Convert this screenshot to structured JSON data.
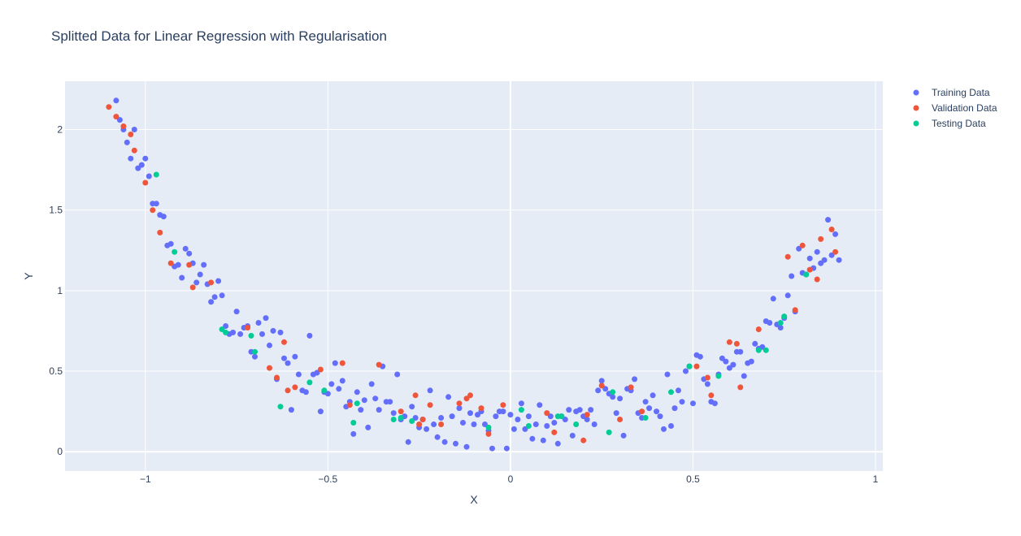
{
  "chart_data": {
    "type": "scatter",
    "title": "Splitted Data for Linear Regression with Regularisation",
    "xlabel": "X",
    "ylabel": "Y",
    "xlim": [
      -1.22,
      1.02
    ],
    "ylim": [
      -0.12,
      2.3
    ],
    "x_ticks": [
      -1,
      -0.5,
      0,
      0.5,
      1
    ],
    "x_tick_labels": [
      "−1",
      "−0.5",
      "0",
      "0.5",
      "1"
    ],
    "y_ticks": [
      0,
      0.5,
      1,
      1.5,
      2
    ],
    "y_tick_labels": [
      "0",
      "0.5",
      "1",
      "1.5",
      "2"
    ],
    "grid": true,
    "plot_background": "#e5ecf6",
    "legend_position": "top-right",
    "series": [
      {
        "name": "Training Data",
        "color": "#636efa",
        "points": [
          [
            -1.08,
            2.18
          ],
          [
            -1.07,
            2.06
          ],
          [
            -1.06,
            2.0
          ],
          [
            -1.05,
            1.92
          ],
          [
            -1.04,
            1.82
          ],
          [
            -1.03,
            2.0
          ],
          [
            -1.02,
            1.76
          ],
          [
            -1.01,
            1.78
          ],
          [
            -1.0,
            1.82
          ],
          [
            -0.99,
            1.71
          ],
          [
            -0.98,
            1.54
          ],
          [
            -0.97,
            1.54
          ],
          [
            -0.96,
            1.47
          ],
          [
            -0.95,
            1.46
          ],
          [
            -0.94,
            1.28
          ],
          [
            -0.93,
            1.29
          ],
          [
            -0.92,
            1.15
          ],
          [
            -0.91,
            1.16
          ],
          [
            -0.9,
            1.08
          ],
          [
            -0.89,
            1.26
          ],
          [
            -0.88,
            1.23
          ],
          [
            -0.87,
            1.17
          ],
          [
            -0.86,
            1.05
          ],
          [
            -0.85,
            1.1
          ],
          [
            -0.84,
            1.16
          ],
          [
            -0.83,
            1.04
          ],
          [
            -0.82,
            0.93
          ],
          [
            -0.81,
            0.96
          ],
          [
            -0.8,
            1.06
          ],
          [
            -0.79,
            0.97
          ],
          [
            -0.78,
            0.78
          ],
          [
            -0.77,
            0.73
          ],
          [
            -0.76,
            0.74
          ],
          [
            -0.75,
            0.87
          ],
          [
            -0.74,
            0.73
          ],
          [
            -0.73,
            0.77
          ],
          [
            -0.72,
            0.78
          ],
          [
            -0.71,
            0.62
          ],
          [
            -0.7,
            0.59
          ],
          [
            -0.69,
            0.8
          ],
          [
            -0.68,
            0.73
          ],
          [
            -0.67,
            0.83
          ],
          [
            -0.66,
            0.66
          ],
          [
            -0.65,
            0.75
          ],
          [
            -0.64,
            0.45
          ],
          [
            -0.63,
            0.74
          ],
          [
            -0.62,
            0.58
          ],
          [
            -0.61,
            0.55
          ],
          [
            -0.6,
            0.26
          ],
          [
            -0.59,
            0.59
          ],
          [
            -0.58,
            0.48
          ],
          [
            -0.57,
            0.38
          ],
          [
            -0.56,
            0.37
          ],
          [
            -0.55,
            0.72
          ],
          [
            -0.54,
            0.48
          ],
          [
            -0.53,
            0.49
          ],
          [
            -0.52,
            0.25
          ],
          [
            -0.51,
            0.37
          ],
          [
            -0.5,
            0.36
          ],
          [
            -0.49,
            0.42
          ],
          [
            -0.48,
            0.55
          ],
          [
            -0.47,
            0.39
          ],
          [
            -0.46,
            0.44
          ],
          [
            -0.45,
            0.28
          ],
          [
            -0.44,
            0.31
          ],
          [
            -0.43,
            0.11
          ],
          [
            -0.42,
            0.37
          ],
          [
            -0.41,
            0.26
          ],
          [
            -0.4,
            0.32
          ],
          [
            -0.39,
            0.15
          ],
          [
            -0.38,
            0.42
          ],
          [
            -0.37,
            0.33
          ],
          [
            -0.36,
            0.26
          ],
          [
            -0.35,
            0.53
          ],
          [
            -0.34,
            0.31
          ],
          [
            -0.33,
            0.31
          ],
          [
            -0.32,
            0.24
          ],
          [
            -0.31,
            0.48
          ],
          [
            -0.3,
            0.2
          ],
          [
            -0.29,
            0.22
          ],
          [
            -0.28,
            0.06
          ],
          [
            -0.27,
            0.28
          ],
          [
            -0.26,
            0.21
          ],
          [
            -0.25,
            0.15
          ],
          [
            -0.24,
            0.2
          ],
          [
            -0.23,
            0.14
          ],
          [
            -0.22,
            0.38
          ],
          [
            -0.21,
            0.17
          ],
          [
            -0.2,
            0.09
          ],
          [
            -0.19,
            0.21
          ],
          [
            -0.18,
            0.06
          ],
          [
            -0.17,
            0.34
          ],
          [
            -0.16,
            0.22
          ],
          [
            -0.15,
            0.05
          ],
          [
            -0.14,
            0.27
          ],
          [
            -0.13,
            0.18
          ],
          [
            -0.12,
            0.03
          ],
          [
            -0.11,
            0.24
          ],
          [
            -0.1,
            0.17
          ],
          [
            -0.09,
            0.23
          ],
          [
            -0.08,
            0.25
          ],
          [
            -0.07,
            0.17
          ],
          [
            -0.06,
            0.13
          ],
          [
            -0.05,
            0.02
          ],
          [
            -0.04,
            0.22
          ],
          [
            -0.03,
            0.25
          ],
          [
            -0.02,
            0.25
          ],
          [
            -0.01,
            0.02
          ],
          [
            0.0,
            0.23
          ],
          [
            0.01,
            0.14
          ],
          [
            0.02,
            0.2
          ],
          [
            0.03,
            0.3
          ],
          [
            0.04,
            0.14
          ],
          [
            0.05,
            0.22
          ],
          [
            0.06,
            0.08
          ],
          [
            0.07,
            0.17
          ],
          [
            0.08,
            0.29
          ],
          [
            0.09,
            0.07
          ],
          [
            0.1,
            0.16
          ],
          [
            0.11,
            0.22
          ],
          [
            0.12,
            0.18
          ],
          [
            0.13,
            0.05
          ],
          [
            0.14,
            0.22
          ],
          [
            0.15,
            0.2
          ],
          [
            0.16,
            0.26
          ],
          [
            0.17,
            0.1
          ],
          [
            0.18,
            0.25
          ],
          [
            0.19,
            0.26
          ],
          [
            0.2,
            0.22
          ],
          [
            0.21,
            0.2
          ],
          [
            0.22,
            0.26
          ],
          [
            0.23,
            0.17
          ],
          [
            0.24,
            0.38
          ],
          [
            0.25,
            0.44
          ],
          [
            0.26,
            0.39
          ],
          [
            0.27,
            0.36
          ],
          [
            0.28,
            0.34
          ],
          [
            0.29,
            0.24
          ],
          [
            0.3,
            0.33
          ],
          [
            0.31,
            0.1
          ],
          [
            0.32,
            0.39
          ],
          [
            0.33,
            0.38
          ],
          [
            0.34,
            0.45
          ],
          [
            0.35,
            0.24
          ],
          [
            0.36,
            0.21
          ],
          [
            0.37,
            0.31
          ],
          [
            0.38,
            0.27
          ],
          [
            0.39,
            0.35
          ],
          [
            0.4,
            0.25
          ],
          [
            0.41,
            0.22
          ],
          [
            0.42,
            0.14
          ],
          [
            0.43,
            0.48
          ],
          [
            0.44,
            0.16
          ],
          [
            0.45,
            0.27
          ],
          [
            0.46,
            0.38
          ],
          [
            0.47,
            0.31
          ],
          [
            0.48,
            0.5
          ],
          [
            0.49,
            0.53
          ],
          [
            0.5,
            0.3
          ],
          [
            0.51,
            0.6
          ],
          [
            0.52,
            0.59
          ],
          [
            0.53,
            0.45
          ],
          [
            0.54,
            0.42
          ],
          [
            0.55,
            0.31
          ],
          [
            0.56,
            0.3
          ],
          [
            0.57,
            0.48
          ],
          [
            0.58,
            0.58
          ],
          [
            0.59,
            0.56
          ],
          [
            0.6,
            0.52
          ],
          [
            0.61,
            0.54
          ],
          [
            0.62,
            0.62
          ],
          [
            0.63,
            0.62
          ],
          [
            0.64,
            0.47
          ],
          [
            0.65,
            0.55
          ],
          [
            0.66,
            0.56
          ],
          [
            0.67,
            0.67
          ],
          [
            0.68,
            0.64
          ],
          [
            0.69,
            0.65
          ],
          [
            0.7,
            0.81
          ],
          [
            0.71,
            0.8
          ],
          [
            0.72,
            0.95
          ],
          [
            0.73,
            0.79
          ],
          [
            0.74,
            0.77
          ],
          [
            0.75,
            0.83
          ],
          [
            0.76,
            0.97
          ],
          [
            0.77,
            1.09
          ],
          [
            0.78,
            0.87
          ],
          [
            0.79,
            1.26
          ],
          [
            0.8,
            1.11
          ],
          [
            0.81,
            1.1
          ],
          [
            0.82,
            1.2
          ],
          [
            0.83,
            1.14
          ],
          [
            0.84,
            1.24
          ],
          [
            0.85,
            1.17
          ],
          [
            0.86,
            1.19
          ],
          [
            0.87,
            1.44
          ],
          [
            0.88,
            1.22
          ],
          [
            0.89,
            1.35
          ],
          [
            0.9,
            1.19
          ]
        ]
      },
      {
        "name": "Validation Data",
        "color": "#ef553b",
        "points": [
          [
            -1.1,
            2.14
          ],
          [
            -1.08,
            2.08
          ],
          [
            -1.06,
            2.02
          ],
          [
            -1.04,
            1.97
          ],
          [
            -1.03,
            1.87
          ],
          [
            -1.0,
            1.67
          ],
          [
            -0.98,
            1.5
          ],
          [
            -0.96,
            1.36
          ],
          [
            -0.93,
            1.17
          ],
          [
            -0.87,
            1.02
          ],
          [
            -0.88,
            1.16
          ],
          [
            -0.82,
            1.05
          ],
          [
            -0.72,
            0.77
          ],
          [
            -0.66,
            0.52
          ],
          [
            -0.64,
            0.46
          ],
          [
            -0.62,
            0.68
          ],
          [
            -0.61,
            0.38
          ],
          [
            -0.59,
            0.4
          ],
          [
            -0.52,
            0.51
          ],
          [
            -0.46,
            0.55
          ],
          [
            -0.44,
            0.29
          ],
          [
            -0.36,
            0.54
          ],
          [
            -0.3,
            0.25
          ],
          [
            -0.26,
            0.35
          ],
          [
            -0.25,
            0.17
          ],
          [
            -0.24,
            0.2
          ],
          [
            -0.22,
            0.29
          ],
          [
            -0.19,
            0.17
          ],
          [
            -0.14,
            0.3
          ],
          [
            -0.12,
            0.33
          ],
          [
            -0.11,
            0.35
          ],
          [
            -0.08,
            0.27
          ],
          [
            -0.06,
            0.11
          ],
          [
            -0.02,
            0.29
          ],
          [
            0.1,
            0.24
          ],
          [
            0.12,
            0.12
          ],
          [
            0.2,
            0.07
          ],
          [
            0.21,
            0.23
          ],
          [
            0.25,
            0.41
          ],
          [
            0.3,
            0.2
          ],
          [
            0.33,
            0.4
          ],
          [
            0.36,
            0.25
          ],
          [
            0.51,
            0.53
          ],
          [
            0.54,
            0.46
          ],
          [
            0.55,
            0.35
          ],
          [
            0.6,
            0.68
          ],
          [
            0.62,
            0.67
          ],
          [
            0.63,
            0.4
          ],
          [
            0.68,
            0.76
          ],
          [
            0.76,
            1.21
          ],
          [
            0.78,
            0.88
          ],
          [
            0.8,
            1.28
          ],
          [
            0.82,
            1.13
          ],
          [
            0.84,
            1.07
          ],
          [
            0.85,
            1.32
          ],
          [
            0.88,
            1.38
          ],
          [
            0.89,
            1.24
          ]
        ]
      },
      {
        "name": "Testing Data",
        "color": "#00cc96",
        "points": [
          [
            -0.97,
            1.72
          ],
          [
            -0.92,
            1.24
          ],
          [
            -0.79,
            0.76
          ],
          [
            -0.78,
            0.74
          ],
          [
            -0.71,
            0.72
          ],
          [
            -0.7,
            0.62
          ],
          [
            -0.63,
            0.28
          ],
          [
            -0.55,
            0.43
          ],
          [
            -0.51,
            0.38
          ],
          [
            -0.43,
            0.18
          ],
          [
            -0.42,
            0.3
          ],
          [
            -0.32,
            0.2
          ],
          [
            -0.3,
            0.21
          ],
          [
            -0.27,
            0.19
          ],
          [
            -0.06,
            0.15
          ],
          [
            0.03,
            0.26
          ],
          [
            0.05,
            0.16
          ],
          [
            0.13,
            0.22
          ],
          [
            0.14,
            0.22
          ],
          [
            0.18,
            0.17
          ],
          [
            0.27,
            0.12
          ],
          [
            0.28,
            0.37
          ],
          [
            0.37,
            0.21
          ],
          [
            0.44,
            0.37
          ],
          [
            0.49,
            0.53
          ],
          [
            0.57,
            0.47
          ],
          [
            0.68,
            0.63
          ],
          [
            0.7,
            0.63
          ],
          [
            0.74,
            0.8
          ],
          [
            0.75,
            0.84
          ],
          [
            0.81,
            1.1
          ]
        ]
      }
    ]
  }
}
